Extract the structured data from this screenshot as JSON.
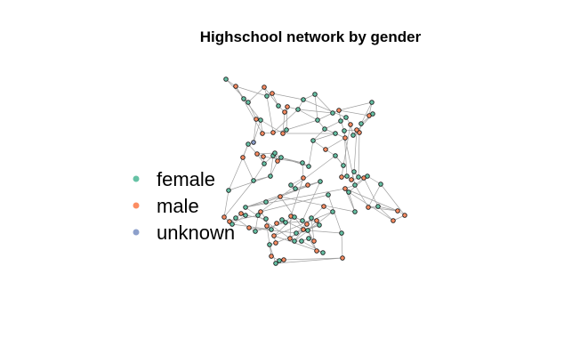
{
  "chart": {
    "title": "Highschool network by gender"
  },
  "legend": {
    "items": [
      {
        "label": "female",
        "color": "#66c2a5"
      },
      {
        "label": "male",
        "color": "#fc8d62"
      },
      {
        "label": "unknown",
        "color": "#8da0cb"
      }
    ]
  }
}
